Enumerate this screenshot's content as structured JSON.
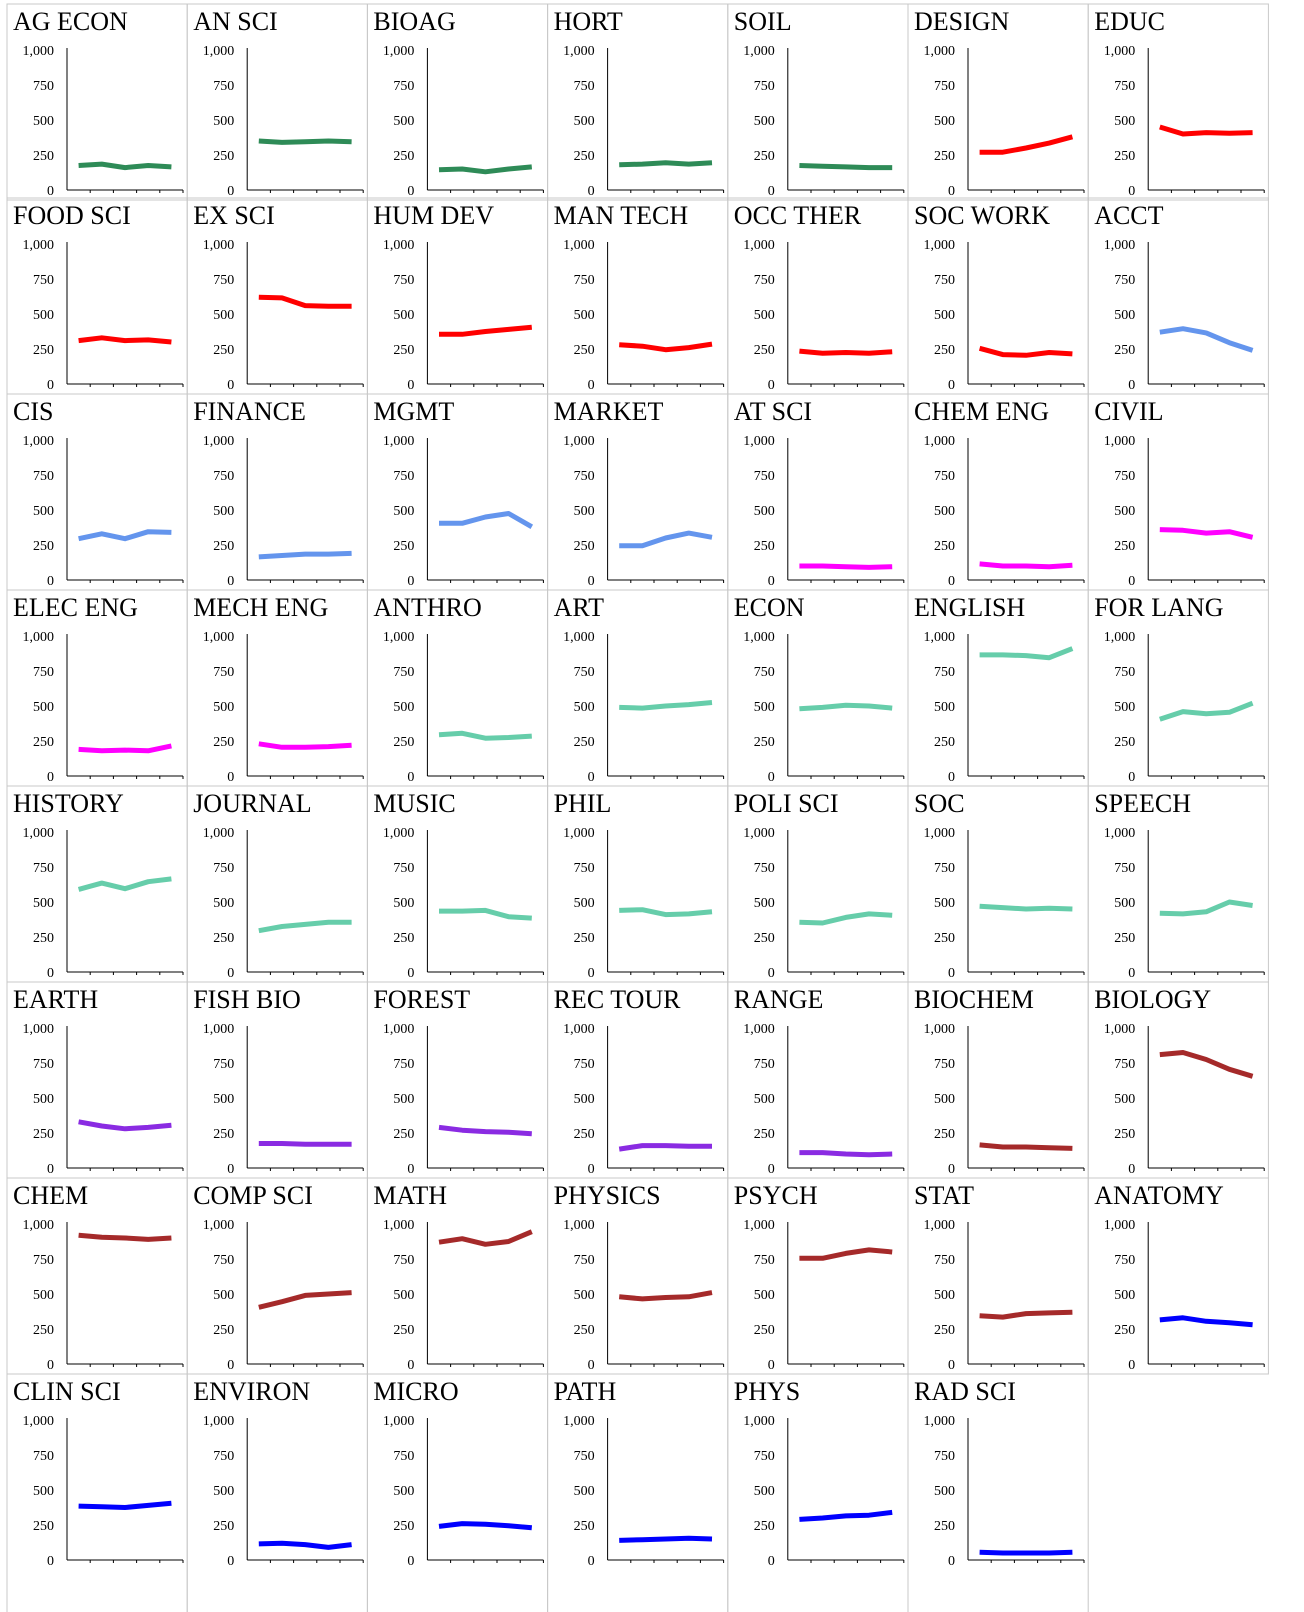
{
  "tick_labels": [
    "0",
    "250",
    "500",
    "750",
    "1,000"
  ],
  "colors": {
    "green": "#2e8b57",
    "red": "#ff0000",
    "cornflower": "#6495ed",
    "magenta": "#ff00ff",
    "teal": "#66cdaa",
    "purple": "#8a2be2",
    "brown": "#a52a2a",
    "blue": "#0000ff"
  },
  "chart_data": [
    {
      "type": "line",
      "title": "AG ECON",
      "ylim": [
        0,
        1000
      ],
      "yticks": [
        0,
        250,
        500,
        750,
        1000
      ],
      "color": "#2e8b57",
      "values": [
        175,
        185,
        160,
        175,
        165
      ]
    },
    {
      "type": "line",
      "title": "AN SCI",
      "ylim": [
        0,
        1000
      ],
      "yticks": [
        0,
        250,
        500,
        750,
        1000
      ],
      "color": "#2e8b57",
      "values": [
        350,
        340,
        345,
        350,
        345
      ]
    },
    {
      "type": "line",
      "title": "BIOAG",
      "ylim": [
        0,
        1000
      ],
      "yticks": [
        0,
        250,
        500,
        750,
        1000
      ],
      "color": "#2e8b57",
      "values": [
        145,
        150,
        130,
        150,
        165
      ]
    },
    {
      "type": "line",
      "title": "HORT",
      "ylim": [
        0,
        1000
      ],
      "yticks": [
        0,
        250,
        500,
        750,
        1000
      ],
      "color": "#2e8b57",
      "values": [
        180,
        185,
        195,
        185,
        195
      ]
    },
    {
      "type": "line",
      "title": "SOIL",
      "ylim": [
        0,
        1000
      ],
      "yticks": [
        0,
        250,
        500,
        750,
        1000
      ],
      "color": "#2e8b57",
      "values": [
        175,
        170,
        165,
        160,
        160
      ]
    },
    {
      "type": "line",
      "title": "DESIGN",
      "ylim": [
        0,
        1000
      ],
      "yticks": [
        0,
        250,
        500,
        750,
        1000
      ],
      "color": "#ff0000",
      "values": [
        270,
        270,
        300,
        335,
        380
      ]
    },
    {
      "type": "line",
      "title": "EDUC",
      "ylim": [
        0,
        1000
      ],
      "yticks": [
        0,
        250,
        500,
        750,
        1000
      ],
      "color": "#ff0000",
      "values": [
        450,
        400,
        410,
        405,
        410
      ]
    },
    {
      "type": "line",
      "title": "FOOD SCI",
      "ylim": [
        0,
        1000
      ],
      "yticks": [
        0,
        250,
        500,
        750,
        1000
      ],
      "color": "#ff0000",
      "values": [
        310,
        330,
        310,
        315,
        300
      ]
    },
    {
      "type": "line",
      "title": "EX SCI",
      "ylim": [
        0,
        1000
      ],
      "yticks": [
        0,
        250,
        500,
        750,
        1000
      ],
      "color": "#ff0000",
      "values": [
        620,
        615,
        560,
        555,
        555
      ]
    },
    {
      "type": "line",
      "title": "HUM DEV",
      "ylim": [
        0,
        1000
      ],
      "yticks": [
        0,
        250,
        500,
        750,
        1000
      ],
      "color": "#ff0000",
      "values": [
        355,
        355,
        375,
        390,
        405
      ]
    },
    {
      "type": "line",
      "title": "MAN TECH",
      "ylim": [
        0,
        1000
      ],
      "yticks": [
        0,
        250,
        500,
        750,
        1000
      ],
      "color": "#ff0000",
      "values": [
        280,
        270,
        245,
        260,
        285
      ]
    },
    {
      "type": "line",
      "title": "OCC THER",
      "ylim": [
        0,
        1000
      ],
      "yticks": [
        0,
        250,
        500,
        750,
        1000
      ],
      "color": "#ff0000",
      "values": [
        235,
        220,
        225,
        220,
        230
      ]
    },
    {
      "type": "line",
      "title": "SOC WORK",
      "ylim": [
        0,
        1000
      ],
      "yticks": [
        0,
        250,
        500,
        750,
        1000
      ],
      "color": "#ff0000",
      "values": [
        255,
        210,
        205,
        225,
        215
      ]
    },
    {
      "type": "line",
      "title": "ACCT",
      "ylim": [
        0,
        1000
      ],
      "yticks": [
        0,
        250,
        500,
        750,
        1000
      ],
      "color": "#6495ed",
      "values": [
        370,
        395,
        365,
        295,
        240
      ]
    },
    {
      "type": "line",
      "title": "CIS",
      "ylim": [
        0,
        1000
      ],
      "yticks": [
        0,
        250,
        500,
        750,
        1000
      ],
      "color": "#6495ed",
      "values": [
        295,
        330,
        295,
        345,
        340
      ]
    },
    {
      "type": "line",
      "title": "FINANCE",
      "ylim": [
        0,
        1000
      ],
      "yticks": [
        0,
        250,
        500,
        750,
        1000
      ],
      "color": "#6495ed",
      "values": [
        165,
        175,
        185,
        185,
        190
      ]
    },
    {
      "type": "line",
      "title": "MGMT",
      "ylim": [
        0,
        1000
      ],
      "yticks": [
        0,
        250,
        500,
        750,
        1000
      ],
      "color": "#6495ed",
      "values": [
        405,
        405,
        450,
        475,
        380
      ]
    },
    {
      "type": "line",
      "title": "MARKET",
      "ylim": [
        0,
        1000
      ],
      "yticks": [
        0,
        250,
        500,
        750,
        1000
      ],
      "color": "#6495ed",
      "values": [
        245,
        245,
        300,
        335,
        305
      ]
    },
    {
      "type": "line",
      "title": "AT SCI",
      "ylim": [
        0,
        1000
      ],
      "yticks": [
        0,
        250,
        500,
        750,
        1000
      ],
      "color": "#ff00ff",
      "values": [
        100,
        100,
        95,
        90,
        95
      ]
    },
    {
      "type": "line",
      "title": "CHEM ENG",
      "ylim": [
        0,
        1000
      ],
      "yticks": [
        0,
        250,
        500,
        750,
        1000
      ],
      "color": "#ff00ff",
      "values": [
        115,
        100,
        100,
        95,
        105
      ]
    },
    {
      "type": "line",
      "title": "CIVIL",
      "ylim": [
        0,
        1000
      ],
      "yticks": [
        0,
        250,
        500,
        750,
        1000
      ],
      "color": "#ff00ff",
      "values": [
        360,
        355,
        335,
        345,
        305
      ]
    },
    {
      "type": "line",
      "title": "ELEC ENG",
      "ylim": [
        0,
        1000
      ],
      "yticks": [
        0,
        250,
        500,
        750,
        1000
      ],
      "color": "#ff00ff",
      "values": [
        190,
        180,
        185,
        180,
        215
      ]
    },
    {
      "type": "line",
      "title": "MECH ENG",
      "ylim": [
        0,
        1000
      ],
      "yticks": [
        0,
        250,
        500,
        750,
        1000
      ],
      "color": "#ff00ff",
      "values": [
        230,
        205,
        205,
        210,
        220
      ]
    },
    {
      "type": "line",
      "title": "ANTHRO",
      "ylim": [
        0,
        1000
      ],
      "yticks": [
        0,
        250,
        500,
        750,
        1000
      ],
      "color": "#66cdaa",
      "values": [
        295,
        305,
        270,
        275,
        285
      ]
    },
    {
      "type": "line",
      "title": "ART",
      "ylim": [
        0,
        1000
      ],
      "yticks": [
        0,
        250,
        500,
        750,
        1000
      ],
      "color": "#66cdaa",
      "values": [
        490,
        485,
        500,
        510,
        525
      ]
    },
    {
      "type": "line",
      "title": "ECON",
      "ylim": [
        0,
        1000
      ],
      "yticks": [
        0,
        250,
        500,
        750,
        1000
      ],
      "color": "#66cdaa",
      "values": [
        480,
        490,
        505,
        500,
        485
      ]
    },
    {
      "type": "line",
      "title": "ENGLISH",
      "ylim": [
        0,
        1000
      ],
      "yticks": [
        0,
        250,
        500,
        750,
        1000
      ],
      "color": "#66cdaa",
      "values": [
        865,
        865,
        860,
        845,
        910
      ]
    },
    {
      "type": "line",
      "title": "FOR LANG",
      "ylim": [
        0,
        1000
      ],
      "yticks": [
        0,
        250,
        500,
        750,
        1000
      ],
      "color": "#66cdaa",
      "values": [
        405,
        460,
        445,
        455,
        520
      ]
    },
    {
      "type": "line",
      "title": "HISTORY",
      "ylim": [
        0,
        1000
      ],
      "yticks": [
        0,
        250,
        500,
        750,
        1000
      ],
      "color": "#66cdaa",
      "values": [
        590,
        635,
        595,
        645,
        665
      ]
    },
    {
      "type": "line",
      "title": "JOURNAL",
      "ylim": [
        0,
        1000
      ],
      "yticks": [
        0,
        250,
        500,
        750,
        1000
      ],
      "color": "#66cdaa",
      "values": [
        295,
        325,
        340,
        355,
        355
      ]
    },
    {
      "type": "line",
      "title": "MUSIC",
      "ylim": [
        0,
        1000
      ],
      "yticks": [
        0,
        250,
        500,
        750,
        1000
      ],
      "color": "#66cdaa",
      "values": [
        435,
        435,
        440,
        395,
        385
      ]
    },
    {
      "type": "line",
      "title": "PHIL",
      "ylim": [
        0,
        1000
      ],
      "yticks": [
        0,
        250,
        500,
        750,
        1000
      ],
      "color": "#66cdaa",
      "values": [
        440,
        445,
        410,
        415,
        430
      ]
    },
    {
      "type": "line",
      "title": "POLI SCI",
      "ylim": [
        0,
        1000
      ],
      "yticks": [
        0,
        250,
        500,
        750,
        1000
      ],
      "color": "#66cdaa",
      "values": [
        355,
        350,
        390,
        415,
        405
      ]
    },
    {
      "type": "line",
      "title": "SOC",
      "ylim": [
        0,
        1000
      ],
      "yticks": [
        0,
        250,
        500,
        750,
        1000
      ],
      "color": "#66cdaa",
      "values": [
        470,
        460,
        450,
        455,
        450
      ]
    },
    {
      "type": "line",
      "title": "SPEECH",
      "ylim": [
        0,
        1000
      ],
      "yticks": [
        0,
        250,
        500,
        750,
        1000
      ],
      "color": "#66cdaa",
      "values": [
        420,
        415,
        430,
        500,
        475
      ]
    },
    {
      "type": "line",
      "title": "EARTH",
      "ylim": [
        0,
        1000
      ],
      "yticks": [
        0,
        250,
        500,
        750,
        1000
      ],
      "color": "#8a2be2",
      "values": [
        330,
        300,
        280,
        290,
        305
      ]
    },
    {
      "type": "line",
      "title": "FISH BIO",
      "ylim": [
        0,
        1000
      ],
      "yticks": [
        0,
        250,
        500,
        750,
        1000
      ],
      "color": "#8a2be2",
      "values": [
        175,
        175,
        170,
        170,
        170
      ]
    },
    {
      "type": "line",
      "title": "FOREST",
      "ylim": [
        0,
        1000
      ],
      "yticks": [
        0,
        250,
        500,
        750,
        1000
      ],
      "color": "#8a2be2",
      "values": [
        290,
        270,
        260,
        255,
        245
      ]
    },
    {
      "type": "line",
      "title": "REC TOUR",
      "ylim": [
        0,
        1000
      ],
      "yticks": [
        0,
        250,
        500,
        750,
        1000
      ],
      "color": "#8a2be2",
      "values": [
        135,
        160,
        160,
        155,
        155
      ]
    },
    {
      "type": "line",
      "title": "RANGE",
      "ylim": [
        0,
        1000
      ],
      "yticks": [
        0,
        250,
        500,
        750,
        1000
      ],
      "color": "#8a2be2",
      "values": [
        110,
        110,
        100,
        95,
        100
      ]
    },
    {
      "type": "line",
      "title": "BIOCHEM",
      "ylim": [
        0,
        1000
      ],
      "yticks": [
        0,
        250,
        500,
        750,
        1000
      ],
      "color": "#a52a2a",
      "values": [
        165,
        150,
        150,
        145,
        140
      ]
    },
    {
      "type": "line",
      "title": "BIOLOGY",
      "ylim": [
        0,
        1000
      ],
      "yticks": [
        0,
        250,
        500,
        750,
        1000
      ],
      "color": "#a52a2a",
      "values": [
        810,
        825,
        775,
        705,
        655
      ]
    },
    {
      "type": "line",
      "title": "CHEM",
      "ylim": [
        0,
        1000
      ],
      "yticks": [
        0,
        250,
        500,
        750,
        1000
      ],
      "color": "#a52a2a",
      "values": [
        920,
        905,
        900,
        890,
        900
      ]
    },
    {
      "type": "line",
      "title": "COMP SCI",
      "ylim": [
        0,
        1000
      ],
      "yticks": [
        0,
        250,
        500,
        750,
        1000
      ],
      "color": "#a52a2a",
      "values": [
        405,
        445,
        490,
        500,
        510
      ]
    },
    {
      "type": "line",
      "title": "MATH",
      "ylim": [
        0,
        1000
      ],
      "yticks": [
        0,
        250,
        500,
        750,
        1000
      ],
      "color": "#a52a2a",
      "values": [
        870,
        895,
        855,
        875,
        945
      ]
    },
    {
      "type": "line",
      "title": "PHYSICS",
      "ylim": [
        0,
        1000
      ],
      "yticks": [
        0,
        250,
        500,
        750,
        1000
      ],
      "color": "#a52a2a",
      "values": [
        480,
        465,
        475,
        480,
        510
      ]
    },
    {
      "type": "line",
      "title": "PSYCH",
      "ylim": [
        0,
        1000
      ],
      "yticks": [
        0,
        250,
        500,
        750,
        1000
      ],
      "color": "#a52a2a",
      "values": [
        755,
        755,
        790,
        815,
        800
      ]
    },
    {
      "type": "line",
      "title": "STAT",
      "ylim": [
        0,
        1000
      ],
      "yticks": [
        0,
        250,
        500,
        750,
        1000
      ],
      "color": "#a52a2a",
      "values": [
        345,
        335,
        360,
        365,
        370
      ]
    },
    {
      "type": "line",
      "title": "ANATOMY",
      "ylim": [
        0,
        1000
      ],
      "yticks": [
        0,
        250,
        500,
        750,
        1000
      ],
      "color": "#0000ff",
      "values": [
        315,
        330,
        305,
        295,
        280
      ]
    },
    {
      "type": "line",
      "title": "CLIN SCI",
      "ylim": [
        0,
        1000
      ],
      "yticks": [
        0,
        250,
        500,
        750,
        1000
      ],
      "color": "#0000ff",
      "values": [
        385,
        380,
        375,
        390,
        405
      ]
    },
    {
      "type": "line",
      "title": "ENVIRON",
      "ylim": [
        0,
        1000
      ],
      "yticks": [
        0,
        250,
        500,
        750,
        1000
      ],
      "color": "#0000ff",
      "values": [
        115,
        120,
        110,
        90,
        110
      ]
    },
    {
      "type": "line",
      "title": "MICRO",
      "ylim": [
        0,
        1000
      ],
      "yticks": [
        0,
        250,
        500,
        750,
        1000
      ],
      "color": "#0000ff",
      "values": [
        240,
        260,
        255,
        245,
        230
      ]
    },
    {
      "type": "line",
      "title": "PATH",
      "ylim": [
        0,
        1000
      ],
      "yticks": [
        0,
        250,
        500,
        750,
        1000
      ],
      "color": "#0000ff",
      "values": [
        140,
        145,
        150,
        155,
        150
      ]
    },
    {
      "type": "line",
      "title": "PHYS",
      "ylim": [
        0,
        1000
      ],
      "yticks": [
        0,
        250,
        500,
        750,
        1000
      ],
      "color": "#0000ff",
      "values": [
        290,
        300,
        315,
        320,
        340
      ]
    },
    {
      "type": "line",
      "title": "RAD SCI",
      "ylim": [
        0,
        1000
      ],
      "yticks": [
        0,
        250,
        500,
        750,
        1000
      ],
      "color": "#0000ff",
      "values": [
        55,
        50,
        50,
        50,
        55
      ]
    }
  ]
}
